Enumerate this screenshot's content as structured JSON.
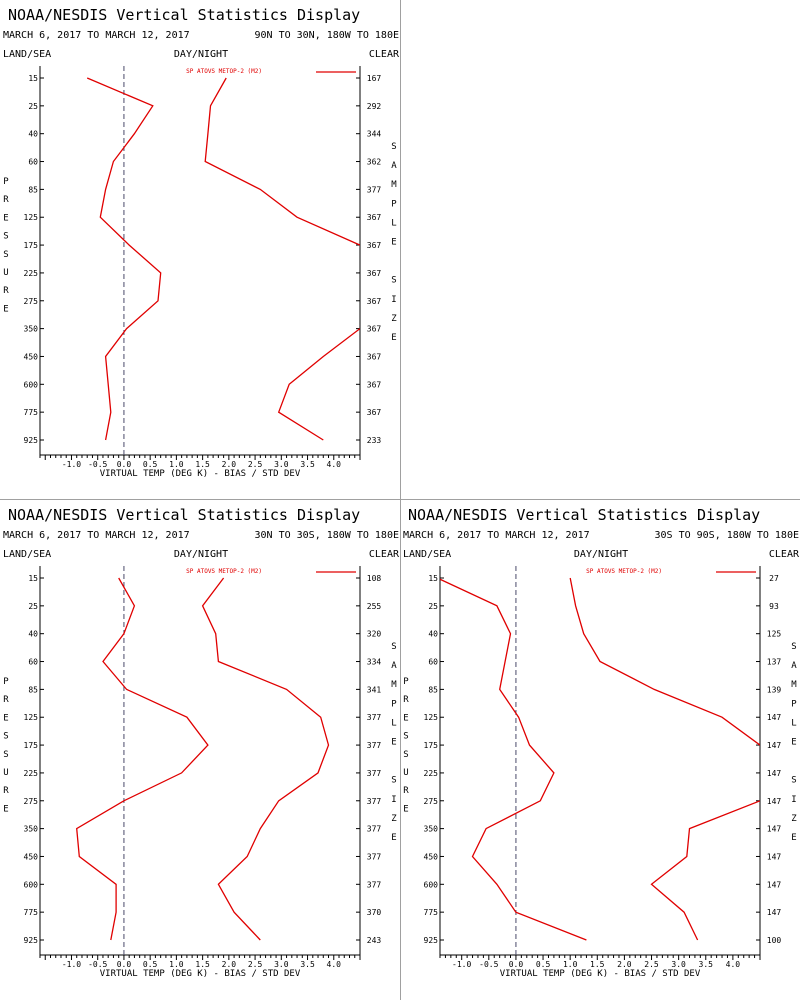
{
  "theme": {
    "line_color": "#e00000",
    "axis_color": "#000000",
    "zero_line_color": "#4a4a6a",
    "divider_color": "#a0a0a0"
  },
  "chart_data": [
    {
      "type": "line",
      "title": "NOAA/NESDIS Vertical Statistics Display",
      "date_range": "MARCH 6, 2017 TO MARCH 12, 2017",
      "region": "90N TO 30N, 180W TO 180E",
      "header_left": "LAND/SEA",
      "header_center": "DAY/NIGHT",
      "header_right": "CLEAR",
      "ylabel": "PRESSURE",
      "ylabel_right": "SAMPLE SIZE",
      "xlabel": "VIRTUAL TEMP (DEG K) - BIAS / STD DEV",
      "legend": "SP ATOVS METOP-2 (M2)",
      "legend_position": "top-right",
      "xlim": [
        -1.6,
        4.5
      ],
      "xticks": [
        "-1.0",
        "-0.5",
        "0.0",
        "0.5",
        "1.0",
        "1.5",
        "2.0",
        "2.5",
        "3.0",
        "3.5",
        "4.0"
      ],
      "pressure_levels": [
        "15",
        "25",
        "40",
        "60",
        "85",
        "125",
        "175",
        "225",
        "275",
        "350",
        "450",
        "600",
        "775",
        "925"
      ],
      "sample_size": [
        "167",
        "292",
        "344",
        "362",
        "377",
        "367",
        "367",
        "367",
        "367",
        "367",
        "367",
        "367",
        "367",
        "233"
      ],
      "series": [
        {
          "values": [
            -0.7,
            0.55,
            0.2,
            -0.2,
            -0.35,
            -0.45,
            0.1,
            0.7,
            0.65,
            0.05,
            -0.35,
            -0.3,
            -0.25,
            -0.35
          ]
        },
        {
          "values": [
            1.95,
            1.65,
            1.6,
            1.55,
            2.6,
            3.3,
            4.5,
            null,
            null,
            4.5,
            3.8,
            3.15,
            2.95,
            3.8
          ]
        }
      ]
    },
    {
      "type": "line",
      "title": "NOAA/NESDIS Vertical Statistics Display",
      "date_range": "MARCH 6, 2017 TO MARCH 12, 2017",
      "region": "30N TO 30S, 180W TO 180E",
      "header_left": "LAND/SEA",
      "header_center": "DAY/NIGHT",
      "header_right": "CLEAR",
      "ylabel": "PRESSURE",
      "ylabel_right": "SAMPLE SIZE",
      "xlabel": "VIRTUAL TEMP (DEG K) - BIAS / STD DEV",
      "legend": "SP ATOVS METOP-2 (M2)",
      "legend_position": "top-right",
      "xlim": [
        -1.6,
        4.5
      ],
      "xticks": [
        "-1.0",
        "-0.5",
        "0.0",
        "0.5",
        "1.0",
        "1.5",
        "2.0",
        "2.5",
        "3.0",
        "3.5",
        "4.0"
      ],
      "pressure_levels": [
        "15",
        "25",
        "40",
        "60",
        "85",
        "125",
        "175",
        "225",
        "275",
        "350",
        "450",
        "600",
        "775",
        "925"
      ],
      "sample_size": [
        "108",
        "255",
        "320",
        "334",
        "341",
        "377",
        "377",
        "377",
        "377",
        "377",
        "377",
        "377",
        "370",
        "243"
      ],
      "series": [
        {
          "values": [
            -0.1,
            0.2,
            0.0,
            -0.4,
            0.05,
            1.2,
            1.6,
            1.1,
            0.0,
            -0.9,
            -0.85,
            -0.15,
            -0.15,
            -0.25
          ]
        },
        {
          "values": [
            1.9,
            1.5,
            1.75,
            1.8,
            3.1,
            3.75,
            3.9,
            3.7,
            2.95,
            2.6,
            2.35,
            1.8,
            2.1,
            2.6
          ]
        }
      ]
    },
    {
      "type": "line",
      "title": "NOAA/NESDIS Vertical Statistics Display",
      "date_range": "MARCH 6, 2017 TO MARCH 12, 2017",
      "region": "30S TO 90S, 180W TO 180E",
      "header_left": "LAND/SEA",
      "header_center": "DAY/NIGHT",
      "header_right": "CLEAR",
      "ylabel": "PRESSURE",
      "ylabel_right": "SAMPLE SIZE",
      "xlabel": "VIRTUAL TEMP (DEG K) - BIAS / STD DEV",
      "legend": "SP ATOVS METOP-2 (M2)",
      "legend_position": "top-right",
      "xlim": [
        -1.4,
        4.5
      ],
      "xticks": [
        "-1.0",
        "-0.5",
        "0.0",
        "0.5",
        "1.0",
        "1.5",
        "2.0",
        "2.5",
        "3.0",
        "3.5",
        "4.0"
      ],
      "pressure_levels": [
        "15",
        "25",
        "40",
        "60",
        "85",
        "125",
        "175",
        "225",
        "275",
        "350",
        "450",
        "600",
        "775",
        "925"
      ],
      "sample_size": [
        "27",
        "93",
        "125",
        "137",
        "139",
        "147",
        "147",
        "147",
        "147",
        "147",
        "147",
        "147",
        "147",
        "100"
      ],
      "series": [
        {
          "values": [
            -1.45,
            -0.35,
            -0.1,
            -0.2,
            -0.3,
            0.05,
            0.25,
            0.7,
            0.45,
            -0.55,
            -0.8,
            -0.35,
            0.0,
            1.3
          ]
        },
        {
          "values": [
            1.0,
            1.1,
            1.25,
            1.55,
            2.55,
            3.8,
            4.5,
            null,
            4.5,
            3.2,
            3.15,
            2.5,
            3.1,
            3.35
          ]
        }
      ]
    }
  ]
}
